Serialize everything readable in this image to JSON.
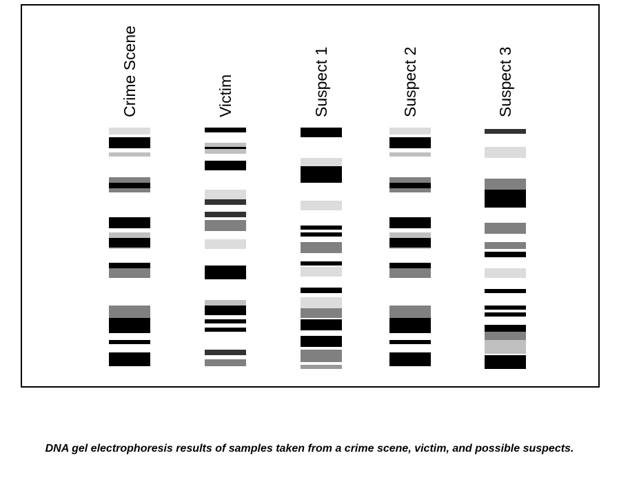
{
  "caption": "DNA gel electrophoresis results of samples taken from a crime scene, victim, and possible suspects.",
  "colors": {
    "black": "#000000",
    "dark": "#333333",
    "gray": "#808080",
    "mid": "#999999",
    "light": "#c0c0c0",
    "pale": "#dcdcdc"
  },
  "lanes": [
    {
      "label": "Crime Scene",
      "bands": [
        {
          "pos": 0,
          "thick": 10,
          "shade": "pale"
        },
        {
          "pos": 14,
          "thick": 16,
          "shade": "black"
        },
        {
          "pos": 36,
          "thick": 6,
          "shade": "light"
        },
        {
          "pos": 72,
          "thick": 22,
          "shade": "gray"
        },
        {
          "pos": 80,
          "thick": 8,
          "shade": "black"
        },
        {
          "pos": 130,
          "thick": 16,
          "shade": "black"
        },
        {
          "pos": 152,
          "thick": 24,
          "shade": "light"
        },
        {
          "pos": 160,
          "thick": 14,
          "shade": "black"
        },
        {
          "pos": 196,
          "thick": 22,
          "shade": "gray"
        },
        {
          "pos": 196,
          "thick": 8,
          "shade": "black"
        },
        {
          "pos": 258,
          "thick": 18,
          "shade": "gray"
        },
        {
          "pos": 276,
          "thick": 22,
          "shade": "black"
        },
        {
          "pos": 308,
          "thick": 6,
          "shade": "black"
        },
        {
          "pos": 326,
          "thick": 20,
          "shade": "black"
        }
      ]
    },
    {
      "label": "Victim",
      "bands": [
        {
          "pos": 0,
          "thick": 7,
          "shade": "black"
        },
        {
          "pos": 22,
          "thick": 16,
          "shade": "light"
        },
        {
          "pos": 28,
          "thick": 3,
          "shade": "black"
        },
        {
          "pos": 48,
          "thick": 14,
          "shade": "black"
        },
        {
          "pos": 90,
          "thick": 14,
          "shade": "pale"
        },
        {
          "pos": 104,
          "thick": 8,
          "shade": "dark"
        },
        {
          "pos": 122,
          "thick": 8,
          "shade": "dark"
        },
        {
          "pos": 134,
          "thick": 16,
          "shade": "gray"
        },
        {
          "pos": 162,
          "thick": 14,
          "shade": "pale"
        },
        {
          "pos": 200,
          "thick": 20,
          "shade": "black"
        },
        {
          "pos": 250,
          "thick": 8,
          "shade": "light"
        },
        {
          "pos": 258,
          "thick": 14,
          "shade": "black"
        },
        {
          "pos": 278,
          "thick": 6,
          "shade": "black"
        },
        {
          "pos": 290,
          "thick": 6,
          "shade": "black"
        },
        {
          "pos": 322,
          "thick": 8,
          "shade": "dark"
        },
        {
          "pos": 336,
          "thick": 10,
          "shade": "gray"
        }
      ]
    },
    {
      "label": "Suspect 1",
      "bands": [
        {
          "pos": 0,
          "thick": 14,
          "shade": "black"
        },
        {
          "pos": 44,
          "thick": 12,
          "shade": "pale"
        },
        {
          "pos": 56,
          "thick": 24,
          "shade": "black"
        },
        {
          "pos": 106,
          "thick": 14,
          "shade": "pale"
        },
        {
          "pos": 142,
          "thick": 6,
          "shade": "black"
        },
        {
          "pos": 152,
          "thick": 6,
          "shade": "black"
        },
        {
          "pos": 166,
          "thick": 16,
          "shade": "gray"
        },
        {
          "pos": 194,
          "thick": 6,
          "shade": "black"
        },
        {
          "pos": 202,
          "thick": 14,
          "shade": "pale"
        },
        {
          "pos": 232,
          "thick": 8,
          "shade": "black"
        },
        {
          "pos": 246,
          "thick": 16,
          "shade": "pale"
        },
        {
          "pos": 262,
          "thick": 14,
          "shade": "gray"
        },
        {
          "pos": 278,
          "thick": 16,
          "shade": "black"
        },
        {
          "pos": 302,
          "thick": 16,
          "shade": "black"
        },
        {
          "pos": 322,
          "thick": 18,
          "shade": "gray"
        },
        {
          "pos": 344,
          "thick": 6,
          "shade": "mid"
        }
      ]
    },
    {
      "label": "Suspect 2",
      "bands": [
        {
          "pos": 0,
          "thick": 10,
          "shade": "pale"
        },
        {
          "pos": 14,
          "thick": 16,
          "shade": "black"
        },
        {
          "pos": 36,
          "thick": 6,
          "shade": "light"
        },
        {
          "pos": 72,
          "thick": 22,
          "shade": "gray"
        },
        {
          "pos": 80,
          "thick": 8,
          "shade": "black"
        },
        {
          "pos": 130,
          "thick": 16,
          "shade": "black"
        },
        {
          "pos": 152,
          "thick": 24,
          "shade": "light"
        },
        {
          "pos": 160,
          "thick": 14,
          "shade": "black"
        },
        {
          "pos": 196,
          "thick": 22,
          "shade": "gray"
        },
        {
          "pos": 196,
          "thick": 8,
          "shade": "black"
        },
        {
          "pos": 258,
          "thick": 18,
          "shade": "gray"
        },
        {
          "pos": 276,
          "thick": 22,
          "shade": "black"
        },
        {
          "pos": 308,
          "thick": 6,
          "shade": "black"
        },
        {
          "pos": 326,
          "thick": 20,
          "shade": "black"
        }
      ]
    },
    {
      "label": "Suspect 3",
      "bands": [
        {
          "pos": 2,
          "thick": 7,
          "shade": "dark"
        },
        {
          "pos": 28,
          "thick": 16,
          "shade": "pale"
        },
        {
          "pos": 74,
          "thick": 16,
          "shade": "gray"
        },
        {
          "pos": 90,
          "thick": 26,
          "shade": "black"
        },
        {
          "pos": 138,
          "thick": 16,
          "shade": "gray"
        },
        {
          "pos": 166,
          "thick": 10,
          "shade": "gray"
        },
        {
          "pos": 180,
          "thick": 8,
          "shade": "black"
        },
        {
          "pos": 204,
          "thick": 14,
          "shade": "pale"
        },
        {
          "pos": 234,
          "thick": 6,
          "shade": "black"
        },
        {
          "pos": 258,
          "thick": 6,
          "shade": "black"
        },
        {
          "pos": 268,
          "thick": 6,
          "shade": "black"
        },
        {
          "pos": 286,
          "thick": 10,
          "shade": "black"
        },
        {
          "pos": 296,
          "thick": 12,
          "shade": "gray"
        },
        {
          "pos": 308,
          "thick": 20,
          "shade": "light"
        },
        {
          "pos": 330,
          "thick": 20,
          "shade": "black"
        }
      ]
    }
  ]
}
